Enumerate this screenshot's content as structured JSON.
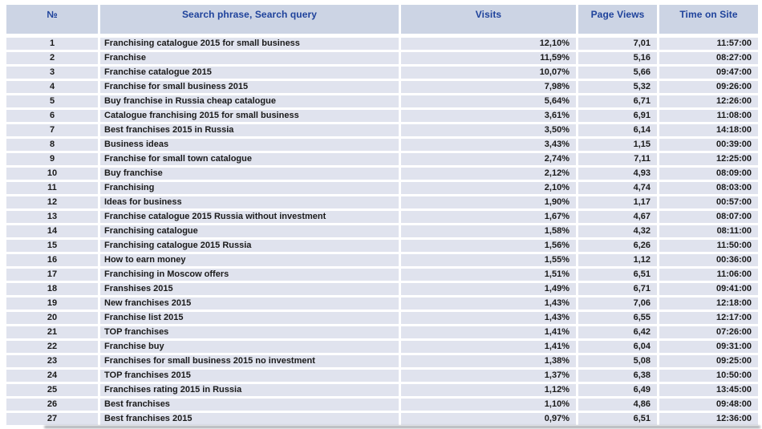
{
  "colors": {
    "header_bg": "#ccd4e4",
    "header_text": "#1e429b",
    "row_bg": "#e0e3ee",
    "cell_text": "#1a1a1a",
    "gutter": "#ffffff"
  },
  "chart_data": {
    "type": "table",
    "columns": [
      "№",
      "Search phrase, Search query",
      "Visits",
      "Page Views",
      "Time on Site"
    ],
    "rows": [
      [
        "1",
        "Franchising catalogue 2015 for small business",
        "12,10%",
        "7,01",
        "11:57:00"
      ],
      [
        "2",
        "Franchise",
        "11,59%",
        "5,16",
        "08:27:00"
      ],
      [
        "3",
        "Franchise catalogue 2015",
        "10,07%",
        "5,66",
        "09:47:00"
      ],
      [
        "4",
        "Franchise for small business 2015",
        "7,98%",
        "5,32",
        "09:26:00"
      ],
      [
        "5",
        "Buy franchise in Russia cheap catalogue",
        "5,64%",
        "6,71",
        "12:26:00"
      ],
      [
        "6",
        "Catalogue franchising 2015 for small business",
        "3,61%",
        "6,91",
        "11:08:00"
      ],
      [
        "7",
        "Best franchises 2015 in Russia",
        "3,50%",
        "6,14",
        "14:18:00"
      ],
      [
        "8",
        "Business ideas",
        "3,43%",
        "1,15",
        "00:39:00"
      ],
      [
        "9",
        "Franchise for small town catalogue",
        "2,74%",
        "7,11",
        "12:25:00"
      ],
      [
        "10",
        "Buy franchise",
        "2,12%",
        "4,93",
        "08:09:00"
      ],
      [
        "11",
        "Franchising",
        "2,10%",
        "4,74",
        "08:03:00"
      ],
      [
        "12",
        "Ideas for business",
        "1,90%",
        "1,17",
        "00:57:00"
      ],
      [
        "13",
        "Franchise catalogue 2015 Russia without investment",
        "1,67%",
        "4,67",
        "08:07:00"
      ],
      [
        "14",
        "Franchising catalogue",
        "1,58%",
        "4,32",
        "08:11:00"
      ],
      [
        "15",
        "Franchising catalogue 2015 Russia",
        "1,56%",
        "6,26",
        "11:50:00"
      ],
      [
        "16",
        "How to earn money",
        "1,55%",
        "1,12",
        "00:36:00"
      ],
      [
        "17",
        "Franchising in Moscow offers",
        "1,51%",
        "6,51",
        "11:06:00"
      ],
      [
        "18",
        "Franshises 2015",
        "1,49%",
        "6,71",
        "09:41:00"
      ],
      [
        "19",
        "New franchises 2015",
        "1,43%",
        "7,06",
        "12:18:00"
      ],
      [
        "20",
        "Franchise list 2015",
        "1,43%",
        "6,55",
        "12:17:00"
      ],
      [
        "21",
        "TOP franchises",
        "1,41%",
        "6,42",
        "07:26:00"
      ],
      [
        "22",
        "Franchise buy",
        "1,41%",
        "6,04",
        "09:31:00"
      ],
      [
        "23",
        "Franchises for small business 2015 no investment",
        "1,38%",
        "5,08",
        "09:25:00"
      ],
      [
        "24",
        "TOP franchises 2015",
        "1,37%",
        "6,38",
        "10:50:00"
      ],
      [
        "25",
        "Franchises rating 2015 in Russia",
        "1,12%",
        "6,49",
        "13:45:00"
      ],
      [
        "26",
        "Best franchises",
        "1,10%",
        "4,86",
        "09:48:00"
      ],
      [
        "27",
        "Best franchises 2015",
        "0,97%",
        "6,51",
        "12:36:00"
      ]
    ]
  }
}
